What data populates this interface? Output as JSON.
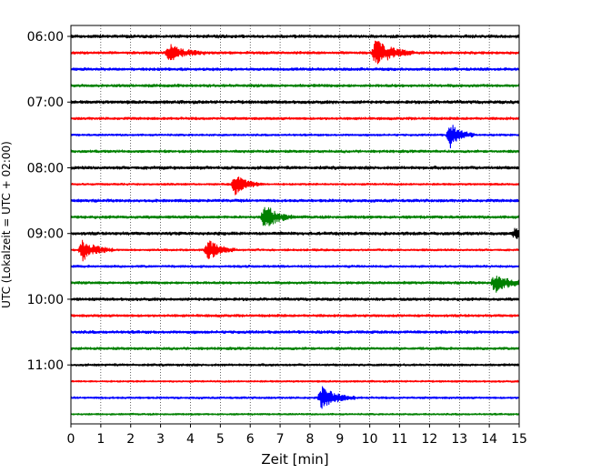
{
  "chart_data": {
    "type": "line",
    "chart_kind": "helicorder seismogram",
    "title": "",
    "xlabel": "Zeit  [min]",
    "ylabel": "UTC (Lokalzeit = UTC + 02:00)",
    "xlim": [
      0,
      15
    ],
    "x_ticks": [
      "0",
      "1",
      "2",
      "3",
      "4",
      "5",
      "6",
      "7",
      "8",
      "9",
      "10",
      "11",
      "12",
      "13",
      "14",
      "15"
    ],
    "y_ticks": [
      "06:00",
      "07:00",
      "08:00",
      "09:00",
      "10:00",
      "11:00"
    ],
    "line_minutes": 15,
    "grid": "vertical dotted lines at each minute",
    "legend": "none",
    "colors": [
      "#000000",
      "#ff0000",
      "#0000ff",
      "#008000"
    ],
    "traces": [
      {
        "start": "06:00",
        "color": "#000000",
        "amplitude": 0.6,
        "events": []
      },
      {
        "start": "06:15",
        "color": "#ff0000",
        "amplitude": 0.5,
        "events": [
          {
            "minute": 3.3,
            "size": 1.0,
            "duration": 1.2
          },
          {
            "minute": 10.2,
            "size": 1.6,
            "duration": 1.3
          }
        ]
      },
      {
        "start": "06:30",
        "color": "#0000ff",
        "amplitude": 0.55,
        "events": []
      },
      {
        "start": "06:45",
        "color": "#008000",
        "amplitude": 0.55,
        "events": []
      },
      {
        "start": "07:00",
        "color": "#000000",
        "amplitude": 0.6,
        "events": []
      },
      {
        "start": "07:15",
        "color": "#ff0000",
        "amplitude": 0.5,
        "events": []
      },
      {
        "start": "07:30",
        "color": "#0000ff",
        "amplitude": 0.4,
        "events": [
          {
            "minute": 12.7,
            "size": 1.5,
            "duration": 0.8
          }
        ]
      },
      {
        "start": "07:45",
        "color": "#008000",
        "amplitude": 0.5,
        "events": []
      },
      {
        "start": "08:00",
        "color": "#000000",
        "amplitude": 0.6,
        "events": []
      },
      {
        "start": "08:15",
        "color": "#ff0000",
        "amplitude": 0.4,
        "events": [
          {
            "minute": 5.5,
            "size": 1.3,
            "duration": 0.9
          }
        ]
      },
      {
        "start": "08:30",
        "color": "#0000ff",
        "amplitude": 0.55,
        "events": []
      },
      {
        "start": "08:45",
        "color": "#008000",
        "amplitude": 0.55,
        "events": [
          {
            "minute": 6.5,
            "size": 1.6,
            "duration": 0.9
          }
        ]
      },
      {
        "start": "09:00",
        "color": "#000000",
        "amplitude": 0.6,
        "events": [
          {
            "minute": 14.9,
            "size": 0.9,
            "duration": 0.3
          }
        ]
      },
      {
        "start": "09:15",
        "color": "#ff0000",
        "amplitude": 0.4,
        "events": [
          {
            "minute": 0.4,
            "size": 1.3,
            "duration": 1.0
          },
          {
            "minute": 4.6,
            "size": 1.3,
            "duration": 0.9
          }
        ]
      },
      {
        "start": "09:30",
        "color": "#0000ff",
        "amplitude": 0.45,
        "events": []
      },
      {
        "start": "09:45",
        "color": "#008000",
        "amplitude": 0.5,
        "events": [
          {
            "minute": 14.2,
            "size": 1.3,
            "duration": 1.0
          }
        ]
      },
      {
        "start": "10:00",
        "color": "#000000",
        "amplitude": 0.55,
        "events": []
      },
      {
        "start": "10:15",
        "color": "#ff0000",
        "amplitude": 0.5,
        "events": []
      },
      {
        "start": "10:30",
        "color": "#0000ff",
        "amplitude": 0.55,
        "events": []
      },
      {
        "start": "10:45",
        "color": "#008000",
        "amplitude": 0.5,
        "events": []
      },
      {
        "start": "11:00",
        "color": "#000000",
        "amplitude": 0.45,
        "events": []
      },
      {
        "start": "11:15",
        "color": "#ff0000",
        "amplitude": 0.35,
        "events": []
      },
      {
        "start": "11:30",
        "color": "#0000ff",
        "amplitude": 0.4,
        "events": [
          {
            "minute": 8.4,
            "size": 1.4,
            "duration": 1.1
          }
        ]
      },
      {
        "start": "11:45",
        "color": "#008000",
        "amplitude": 0.35,
        "events": []
      }
    ]
  }
}
